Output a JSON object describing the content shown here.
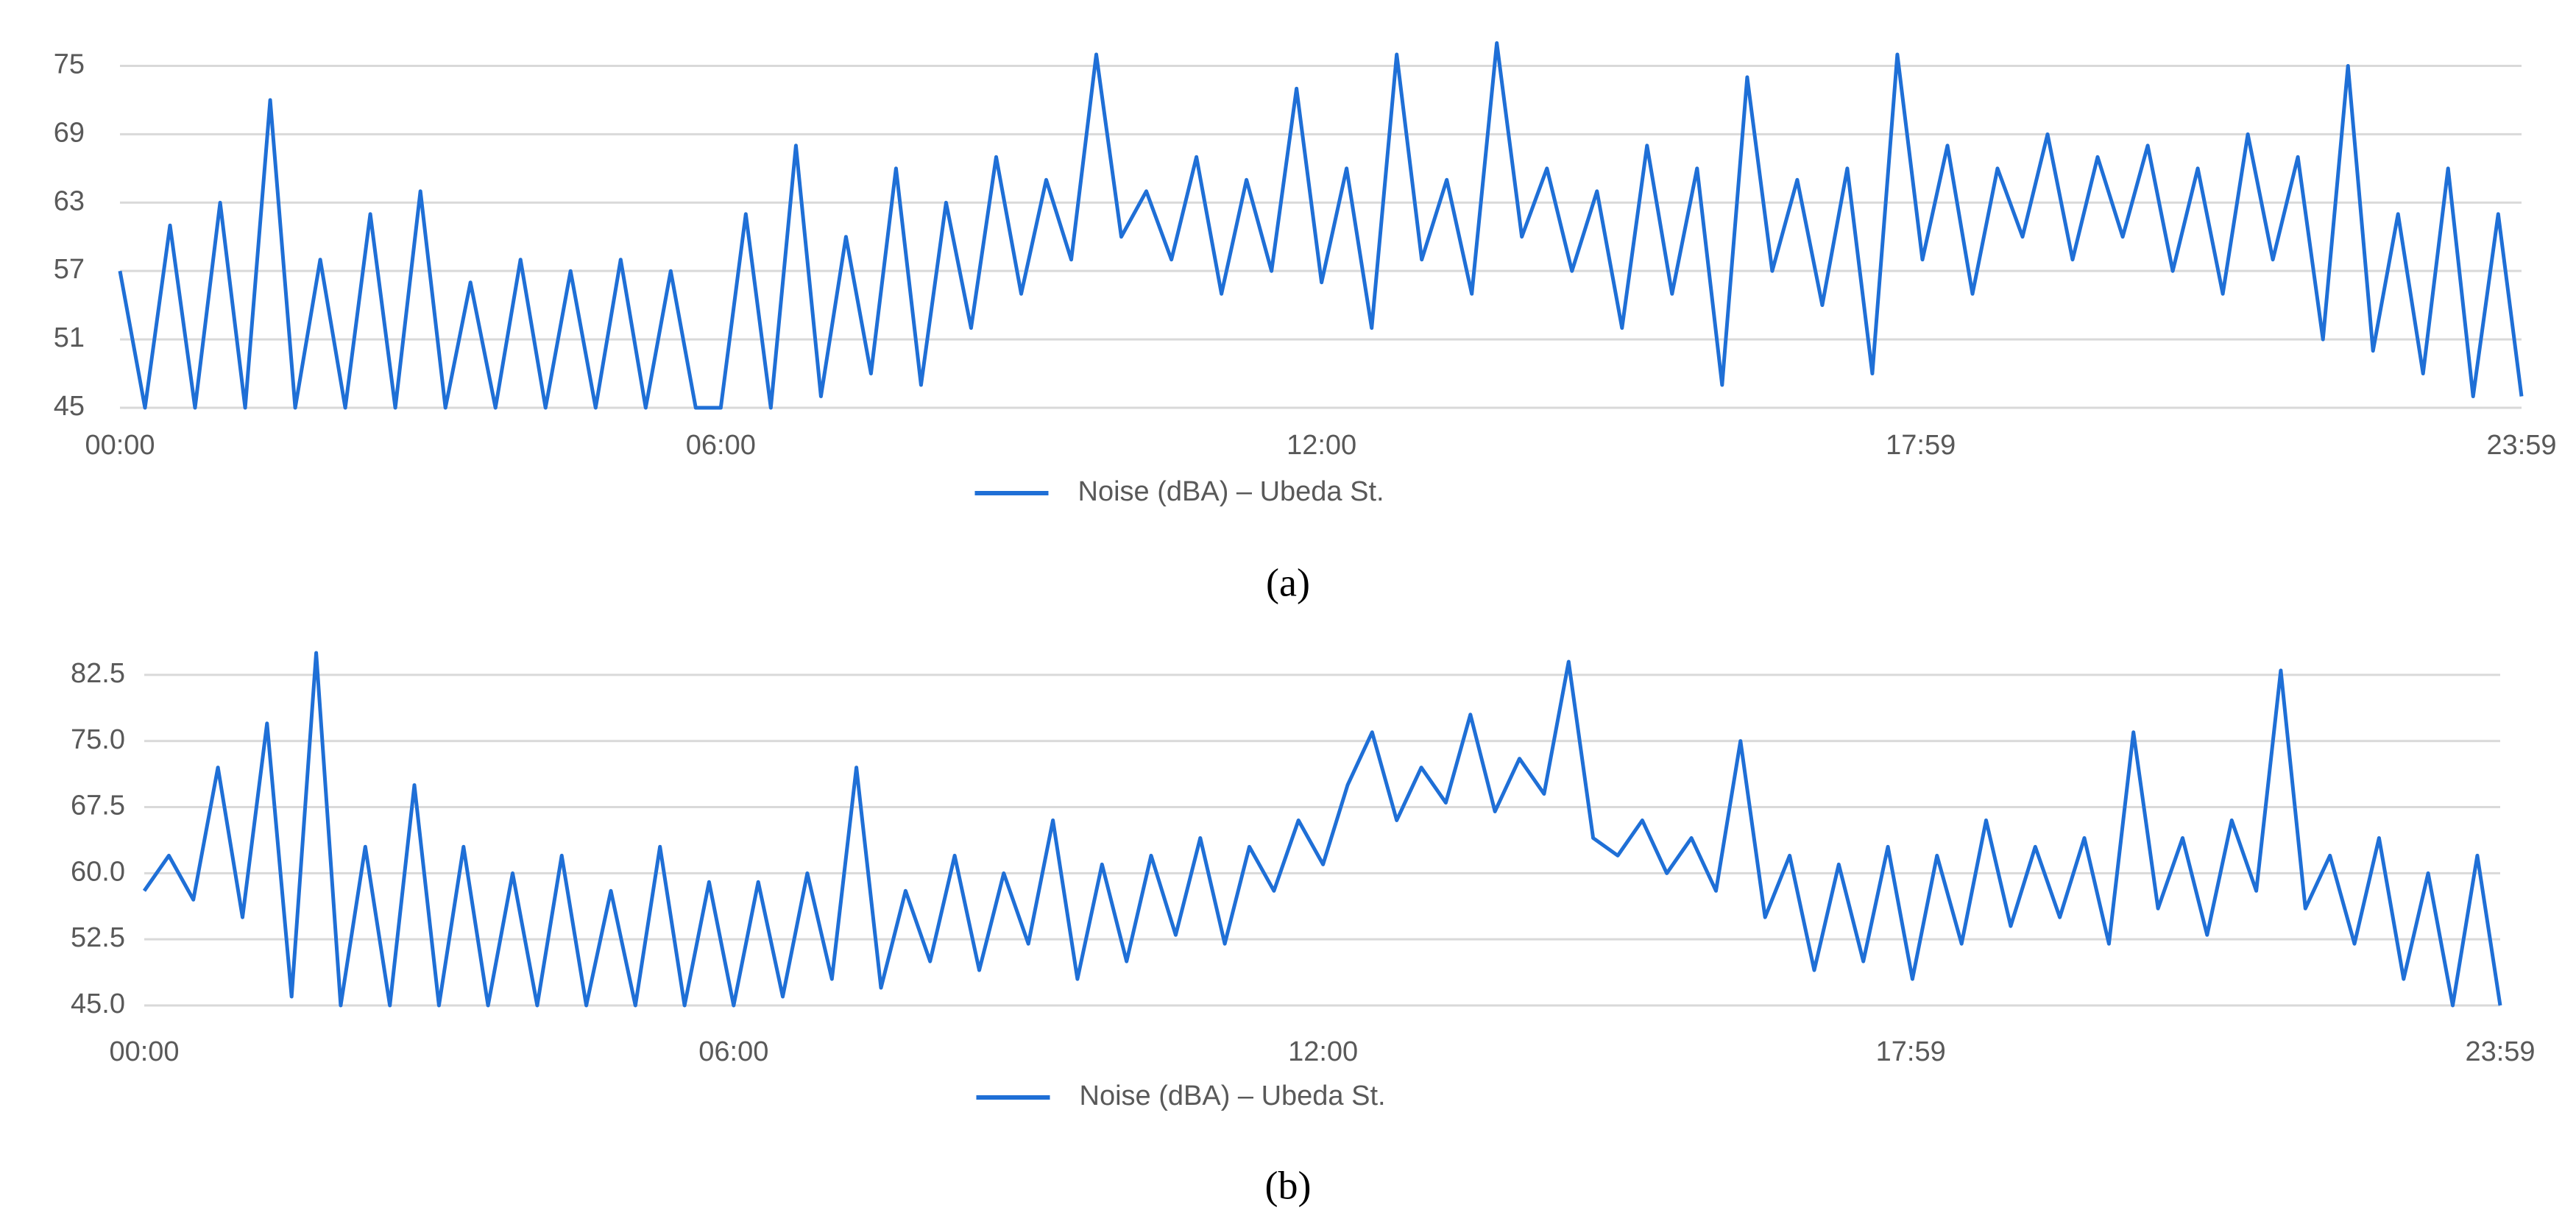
{
  "chart_data": [
    {
      "type": "line",
      "caption": "(a)",
      "x": [
        0,
        15,
        30,
        45,
        60,
        75,
        90,
        105,
        120,
        135,
        150,
        165,
        180,
        195,
        210,
        225,
        240,
        255,
        270,
        285,
        300,
        315,
        330,
        345,
        360,
        375,
        390,
        405,
        420,
        435,
        450,
        465,
        480,
        495,
        510,
        525,
        540,
        555,
        570,
        585,
        600,
        615,
        630,
        645,
        660,
        675,
        690,
        705,
        720,
        735,
        750,
        765,
        780,
        795,
        810,
        825,
        840,
        855,
        870,
        885,
        900,
        915,
        930,
        945,
        960,
        975,
        990,
        1005,
        1020,
        1035,
        1050,
        1065,
        1080,
        1095,
        1110,
        1125,
        1140,
        1155,
        1170,
        1185,
        1200,
        1215,
        1230,
        1245,
        1260,
        1275,
        1290,
        1305,
        1320,
        1335,
        1350,
        1365,
        1380,
        1395,
        1410,
        1425,
        1439
      ],
      "series": [
        {
          "name": "Noise (dBA) – Ubeda St.",
          "color": "#1f6fd6",
          "values": [
            57,
            45,
            61,
            45,
            63,
            45,
            72,
            45,
            58,
            45,
            62,
            45,
            64,
            45,
            56,
            45,
            58,
            45,
            57,
            45,
            58,
            45,
            57,
            45,
            45,
            62,
            45,
            68,
            46,
            60,
            48,
            66,
            47,
            63,
            52,
            67,
            55,
            65,
            58,
            76,
            60,
            64,
            58,
            67,
            55,
            65,
            57,
            73,
            56,
            66,
            52,
            76,
            58,
            65,
            55,
            77,
            60,
            66,
            57,
            64,
            52,
            68,
            55,
            66,
            47,
            74,
            57,
            65,
            54,
            66,
            48,
            76,
            58,
            68,
            55,
            66,
            60,
            69,
            58,
            67,
            60,
            68,
            57,
            66,
            55,
            69,
            58,
            67,
            51,
            75,
            50,
            62,
            48,
            66,
            46,
            62,
            46
          ]
        }
      ],
      "xlim": [
        0,
        1439
      ],
      "xticks": [
        {
          "value": 0,
          "label": "00:00"
        },
        {
          "value": 360,
          "label": "06:00"
        },
        {
          "value": 720,
          "label": "12:00"
        },
        {
          "value": 1079,
          "label": "17:59"
        },
        {
          "value": 1439,
          "label": "23:59"
        }
      ],
      "ylim": [
        45,
        78
      ],
      "yticks": [
        45,
        51,
        57,
        63,
        69,
        75
      ],
      "grid": true
    },
    {
      "type": "line",
      "caption": "(b)",
      "x": [
        0,
        15,
        30,
        45,
        60,
        75,
        90,
        105,
        120,
        135,
        150,
        165,
        180,
        195,
        210,
        225,
        240,
        255,
        270,
        285,
        300,
        315,
        330,
        345,
        360,
        375,
        390,
        405,
        420,
        435,
        450,
        465,
        480,
        495,
        510,
        525,
        540,
        555,
        570,
        585,
        600,
        615,
        630,
        645,
        660,
        675,
        690,
        705,
        720,
        735,
        750,
        765,
        780,
        795,
        810,
        825,
        840,
        855,
        870,
        885,
        900,
        915,
        930,
        945,
        960,
        975,
        990,
        1005,
        1020,
        1035,
        1050,
        1065,
        1080,
        1095,
        1110,
        1125,
        1140,
        1155,
        1170,
        1185,
        1200,
        1215,
        1230,
        1245,
        1260,
        1275,
        1290,
        1305,
        1320,
        1335,
        1350,
        1365,
        1380,
        1395,
        1410,
        1425,
        1439
      ],
      "series": [
        {
          "name": "Noise (dBA) – Ubeda St.",
          "color": "#1f6fd6",
          "values": [
            58,
            62,
            57,
            72,
            55,
            77,
            46,
            85,
            45,
            63,
            45,
            70,
            45,
            63,
            45,
            60,
            45,
            62,
            45,
            58,
            45,
            63,
            45,
            59,
            45,
            59,
            46,
            60,
            48,
            72,
            47,
            58,
            50,
            62,
            49,
            60,
            52,
            66,
            48,
            61,
            50,
            62,
            53,
            64,
            52,
            63,
            58,
            66,
            61,
            70,
            76,
            66,
            72,
            68,
            78,
            67,
            73,
            69,
            84,
            64,
            62,
            66,
            60,
            64,
            58,
            75,
            55,
            62,
            49,
            61,
            50,
            63,
            48,
            62,
            52,
            66,
            54,
            63,
            55,
            64,
            52,
            76,
            56,
            64,
            53,
            66,
            58,
            83,
            56,
            62,
            52,
            64,
            48,
            60,
            45,
            62,
            45
          ]
        }
      ],
      "xlim": [
        0,
        1439
      ],
      "xticks": [
        {
          "value": 0,
          "label": "00:00"
        },
        {
          "value": 360,
          "label": "06:00"
        },
        {
          "value": 720,
          "label": "12:00"
        },
        {
          "value": 1079,
          "label": "17:59"
        },
        {
          "value": 1439,
          "label": "23:59"
        }
      ],
      "ylim": [
        45,
        86
      ],
      "yticks": [
        {
          "value": 45,
          "label": "45.0"
        },
        52.5,
        {
          "value": 60,
          "label": "60.0"
        },
        67.5,
        {
          "value": 75,
          "label": "75.0"
        },
        82.5
      ],
      "grid": true
    }
  ]
}
